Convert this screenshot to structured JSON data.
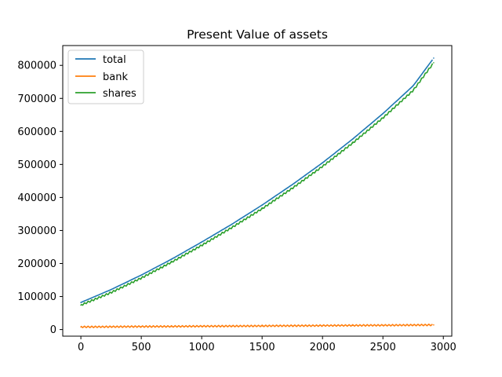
{
  "chart_data": {
    "type": "line",
    "title": "Present Value of assets",
    "xlabel": "",
    "ylabel": "",
    "xlim": [
      -150,
      3070
    ],
    "ylim": [
      -20000,
      860000
    ],
    "x_ticks": [
      0,
      500,
      1000,
      1500,
      2000,
      2500,
      3000
    ],
    "x_tick_labels": [
      "0",
      "500",
      "1000",
      "1500",
      "2000",
      "2500",
      "3000"
    ],
    "y_ticks": [
      0,
      100000,
      200000,
      300000,
      400000,
      500000,
      600000,
      700000,
      800000
    ],
    "y_tick_labels": [
      "0",
      "100000",
      "200000",
      "300000",
      "400000",
      "500000",
      "600000",
      "700000",
      "800000"
    ],
    "grid": false,
    "legend_position": "upper-left",
    "x": [
      0,
      250,
      500,
      750,
      1000,
      1250,
      1500,
      1750,
      2000,
      2250,
      2500,
      2750,
      2920
    ],
    "series": [
      {
        "name": "total",
        "color": "#1f77b4",
        "values": [
          82000,
          121000,
          165000,
          213000,
          265000,
          319000,
          377000,
          439000,
          505000,
          577000,
          654000,
          738000,
          822000
        ]
      },
      {
        "name": "bank",
        "color": "#ff7f0e",
        "values": [
          8000,
          8500,
          9000,
          9500,
          10000,
          10500,
          11000,
          11500,
          12000,
          12500,
          13000,
          13500,
          14000
        ]
      },
      {
        "name": "shares",
        "color": "#2ca02c",
        "values": [
          74000,
          112000,
          156000,
          204000,
          255000,
          309000,
          366000,
          428000,
          494000,
          565000,
          641000,
          724000,
          808000
        ]
      }
    ]
  }
}
